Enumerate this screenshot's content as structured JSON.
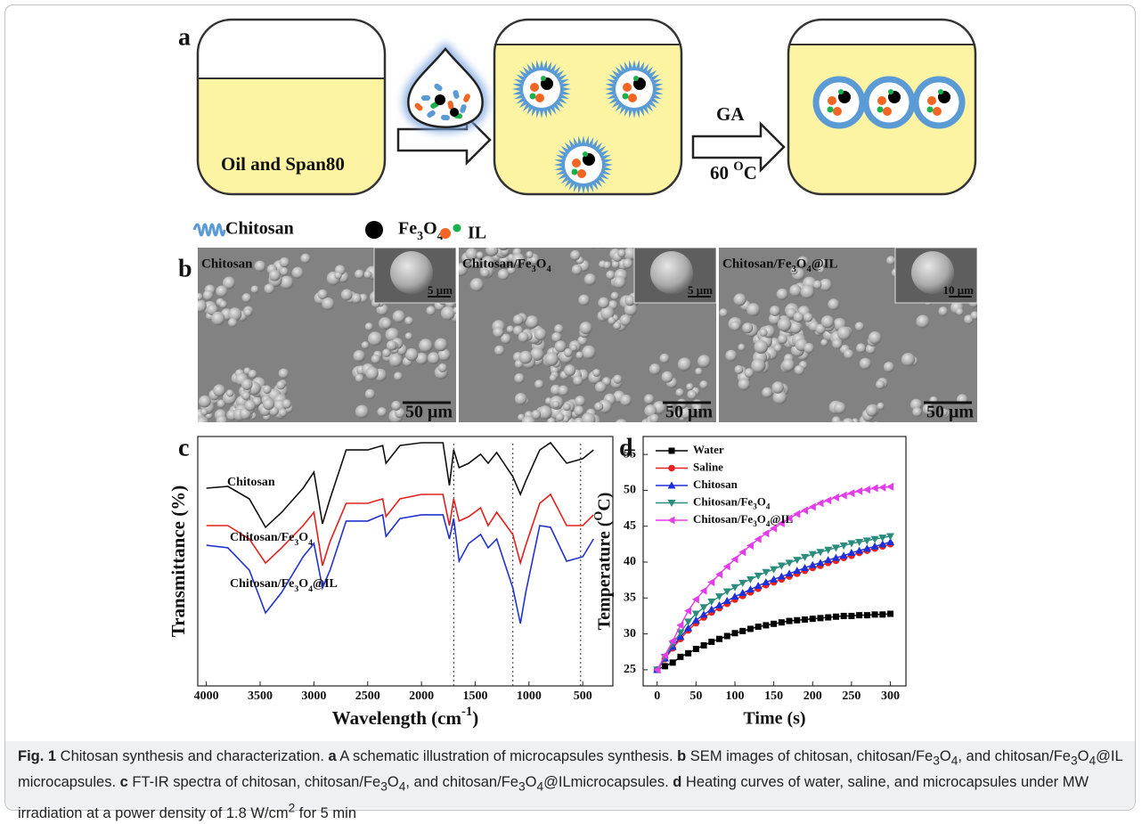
{
  "figure": {
    "schematic": {
      "panel_label": "a",
      "vessel_text": "Oil and Span80",
      "arrow_top": "GA",
      "arrow_bottom": "60 OC",
      "legend": [
        "Chitosan",
        "Fe3O4",
        "IL"
      ]
    },
    "sem": {
      "panel_label": "b",
      "images": [
        {
          "label": "Chitosan",
          "inset_scale": "5 μm",
          "scale": "50 μm"
        },
        {
          "label": "Chitosan/Fe3O4",
          "inset_scale": "5 μm",
          "scale": "50 μm"
        },
        {
          "label": "Chitosan/Fe3O4@IL",
          "inset_scale": "10 μm",
          "scale": "50 μm"
        }
      ]
    }
  },
  "chart_data": [
    {
      "type": "spectra",
      "panel_label": "c",
      "x_label": "Wavelength (cm-1)",
      "y_label": "Transmittance (%)",
      "x": [
        4000,
        3800,
        3600,
        3450,
        3300,
        3100,
        3000,
        2920,
        2850,
        2700,
        2500,
        2360,
        2330,
        2200,
        2000,
        1800,
        1740,
        1700,
        1650,
        1560,
        1450,
        1380,
        1300,
        1150,
        1080,
        1030,
        900,
        800,
        650,
        500,
        400
      ],
      "series": [
        {
          "name": "Chitosan",
          "color": "#111111",
          "values": [
            79.3,
            80,
            75,
            63.6,
            69.6,
            79.3,
            85.7,
            65,
            75,
            94.6,
            94.6,
            96.4,
            89.3,
            96.4,
            97.5,
            97.5,
            80.4,
            94.6,
            87.5,
            89.3,
            92.9,
            89.3,
            93.6,
            83.9,
            76.8,
            82.1,
            94.6,
            97.5,
            89.3,
            91.1,
            94.6
          ]
        },
        {
          "name": "Chitosan/Fe3O4",
          "color": "#e0201c",
          "values": [
            64.3,
            64.3,
            58.9,
            49.3,
            55.4,
            64.3,
            69.6,
            48.2,
            57.9,
            73.2,
            73.2,
            75,
            67.9,
            75,
            76.8,
            76.8,
            64.3,
            75,
            66.1,
            67.9,
            71.4,
            64.3,
            69.6,
            60.7,
            49.3,
            56.4,
            73.2,
            76.8,
            64.3,
            64.3,
            68.6
          ]
        },
        {
          "name": "Chitosan/Fe3O4@IL",
          "color": "#2233cc",
          "values": [
            56.4,
            55.4,
            46.4,
            29.3,
            37.5,
            51.8,
            57.1,
            39.3,
            46.4,
            66.1,
            66.1,
            68.6,
            60,
            67.1,
            68.6,
            68.6,
            58.9,
            67.1,
            50,
            57.1,
            60.7,
            55.4,
            58.9,
            39.3,
            25,
            37.5,
            64.3,
            63.6,
            50,
            51.8,
            58.9
          ]
        }
      ],
      "xlim": [
        4080,
        220
      ],
      "xticks": [
        4000,
        3500,
        3000,
        2500,
        2000,
        1500,
        1000,
        500
      ],
      "ylim": [
        0,
        100
      ],
      "ref_lines": [
        1700,
        1150,
        520
      ]
    },
    {
      "type": "line",
      "panel_label": "d",
      "x_label": "Time (s)",
      "y_label": "Temperature (OC)",
      "x": [
        0,
        10,
        20,
        30,
        40,
        50,
        60,
        70,
        80,
        90,
        100,
        110,
        120,
        130,
        140,
        150,
        160,
        170,
        180,
        190,
        200,
        210,
        220,
        230,
        240,
        250,
        260,
        270,
        280,
        290,
        300
      ],
      "series": [
        {
          "name": "Water",
          "color": "#000000",
          "marker": "square",
          "values": [
            25,
            25.5,
            26,
            26.8,
            27.3,
            27.9,
            28.4,
            28.9,
            29.3,
            29.7,
            30.1,
            30.4,
            30.7,
            31,
            31.2,
            31.4,
            31.6,
            31.8,
            31.9,
            32,
            32.1,
            32.2,
            32.3,
            32.4,
            32.5,
            32.5,
            32.6,
            32.6,
            32.7,
            32.7,
            32.8
          ]
        },
        {
          "name": "Saline",
          "color": "#e8231f",
          "marker": "circle",
          "values": [
            25,
            26.5,
            28,
            29.3,
            30.5,
            31.5,
            32.3,
            33,
            33.6,
            34.2,
            34.8,
            35.3,
            35.8,
            36.3,
            36.8,
            37.2,
            37.6,
            38,
            38.4,
            38.8,
            39.2,
            39.5,
            39.9,
            40.2,
            40.6,
            40.9,
            41.3,
            41.6,
            41.9,
            42.2,
            42.5
          ]
        },
        {
          "name": "Chitosan",
          "color": "#1f2fd9",
          "marker": "triangle-up",
          "values": [
            25,
            26.6,
            28.2,
            29.6,
            30.8,
            31.9,
            32.7,
            33.4,
            34,
            34.6,
            35.2,
            35.7,
            36.2,
            36.7,
            37.2,
            37.6,
            38,
            38.4,
            38.8,
            39.2,
            39.6,
            39.9,
            40.3,
            40.6,
            40.9,
            41.3,
            41.6,
            41.9,
            42.2,
            42.5,
            42.8
          ]
        },
        {
          "name": "Chitosan/Fe3O4",
          "color": "#2a8c7d",
          "marker": "triangle-down",
          "values": [
            25,
            26.8,
            28.6,
            30.2,
            31.7,
            32.8,
            33.7,
            34.5,
            35.2,
            35.9,
            36.5,
            37.1,
            37.6,
            38.1,
            38.6,
            39,
            39.5,
            39.9,
            40.3,
            40.7,
            41.1,
            41.4,
            41.7,
            42,
            42.3,
            42.6,
            42.8,
            43,
            43.2,
            43.4,
            43.6
          ]
        },
        {
          "name": "Chitosan/Fe3O4@IL",
          "color": "#e23de8",
          "marker": "triangle-left",
          "values": [
            25,
            27,
            29,
            31.2,
            33.2,
            34.8,
            36,
            37.2,
            38.3,
            39.4,
            40.4,
            41.4,
            42.3,
            43.2,
            44,
            44.7,
            45.4,
            46.1,
            46.7,
            47.2,
            47.7,
            48.2,
            48.6,
            49,
            49.3,
            49.6,
            49.9,
            50.1,
            50.3,
            50.4,
            50.5
          ]
        }
      ],
      "xlim": [
        -18,
        320
      ],
      "xticks": [
        0,
        50,
        100,
        150,
        200,
        250,
        300
      ],
      "ylim": [
        22.75,
        57.5
      ],
      "yticks": [
        25,
        30,
        35,
        40,
        45,
        50,
        55
      ]
    }
  ],
  "caption": [
    "Fig. 1",
    " Chitosan synthesis and characterization. ",
    "a",
    " A schematic illustration of microcapsules synthesis. ",
    "b",
    " SEM images of chitosan, chitosan/Fe3O4, and chitosan/Fe3O4@IL microcapsules. ",
    "c",
    " FT-IR spectra of chitosan, chitosan/Fe3O4, and chitosan/Fe3O4@ILmicrocapsules. ",
    "d",
    " Heating curves of water, saline, and microcapsules under MW irradiation at a power density of 1.8 W/cm2 for 5 min"
  ]
}
